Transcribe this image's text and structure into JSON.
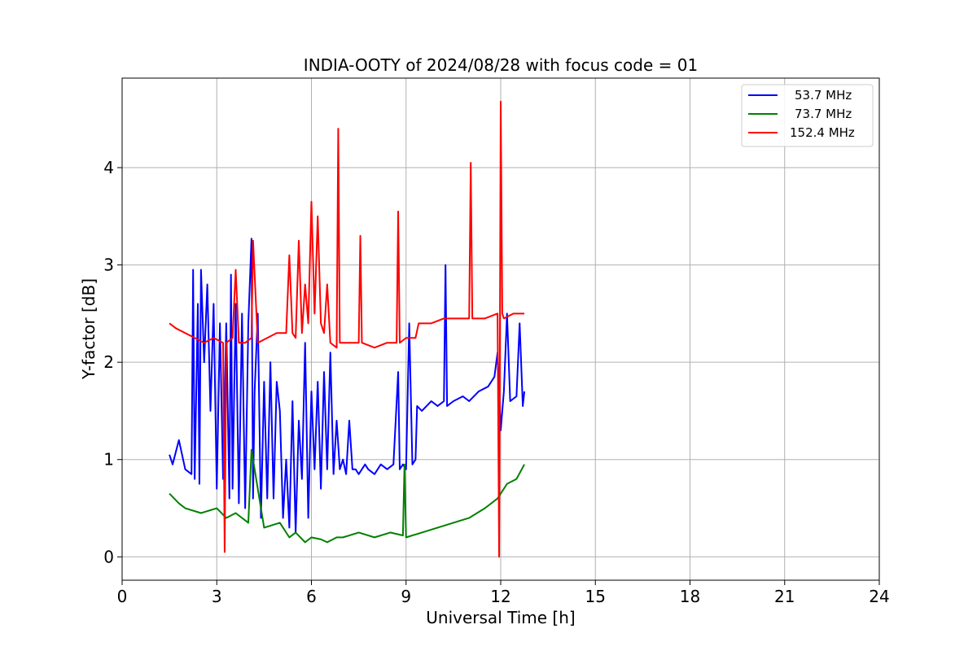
{
  "chart_data": {
    "type": "line",
    "title": "INDIA-OOTY of 2024/08/28 with focus code = 01",
    "xlabel": "Universal Time [h]",
    "ylabel": "Y-factor [dB]",
    "xlim": [
      0,
      24
    ],
    "ylim": [
      -0.24,
      4.92
    ],
    "xticks": [
      "0",
      "3",
      "6",
      "9",
      "12",
      "15",
      "18",
      "21",
      "24"
    ],
    "yticks": [
      "0",
      "1",
      "2",
      "3",
      "4"
    ],
    "grid": true,
    "legend_position": "top-right",
    "series": [
      {
        "name": "53.7 MHz",
        "color": "#0000ff",
        "x": [
          1.5,
          1.6,
          1.8,
          2.0,
          2.2,
          2.25,
          2.3,
          2.4,
          2.45,
          2.5,
          2.6,
          2.7,
          2.8,
          2.9,
          3.0,
          3.1,
          3.2,
          3.3,
          3.4,
          3.45,
          3.5,
          3.6,
          3.7,
          3.8,
          3.9,
          4.0,
          4.1,
          4.15,
          4.2,
          4.3,
          4.4,
          4.5,
          4.6,
          4.7,
          4.8,
          4.9,
          5.0,
          5.1,
          5.2,
          5.3,
          5.4,
          5.5,
          5.6,
          5.7,
          5.8,
          5.9,
          6.0,
          6.1,
          6.2,
          6.3,
          6.4,
          6.5,
          6.6,
          6.7,
          6.8,
          6.9,
          7.0,
          7.1,
          7.2,
          7.3,
          7.4,
          7.5,
          7.6,
          7.7,
          7.8,
          8.0,
          8.2,
          8.4,
          8.6,
          8.75,
          8.8,
          8.9,
          9.0,
          9.1,
          9.2,
          9.3,
          9.35,
          9.5,
          9.8,
          10.0,
          10.2,
          10.25,
          10.3,
          10.5,
          10.8,
          11.0,
          11.3,
          11.6,
          11.8,
          11.9,
          12.0,
          12.1,
          12.2,
          12.3,
          12.5,
          12.6,
          12.7,
          12.75
        ],
        "y": [
          1.05,
          0.95,
          1.2,
          0.9,
          0.85,
          2.95,
          0.8,
          2.6,
          0.75,
          2.95,
          2.0,
          2.8,
          1.5,
          2.6,
          0.7,
          2.4,
          0.8,
          2.4,
          0.6,
          2.9,
          0.7,
          2.6,
          0.55,
          2.5,
          0.5,
          2.4,
          3.27,
          0.6,
          1.7,
          2.5,
          0.4,
          1.8,
          0.6,
          2.0,
          0.6,
          1.8,
          1.5,
          0.4,
          1.0,
          0.3,
          1.6,
          0.25,
          1.4,
          0.8,
          2.2,
          0.4,
          1.7,
          0.9,
          1.8,
          0.7,
          1.9,
          0.9,
          2.1,
          0.85,
          1.4,
          0.9,
          1.0,
          0.85,
          1.4,
          0.9,
          0.9,
          0.85,
          0.9,
          0.95,
          0.9,
          0.85,
          0.95,
          0.9,
          0.95,
          1.9,
          0.9,
          0.95,
          0.9,
          2.4,
          0.95,
          1.0,
          1.55,
          1.5,
          1.6,
          1.55,
          1.6,
          3.0,
          1.55,
          1.6,
          1.65,
          1.6,
          1.7,
          1.75,
          1.85,
          2.1,
          1.3,
          1.7,
          2.5,
          1.6,
          1.65,
          2.4,
          1.55,
          1.7
        ]
      },
      {
        "name": "73.7 MHz",
        "color": "#008000",
        "x": [
          1.5,
          1.8,
          2.0,
          2.5,
          3.0,
          3.3,
          3.6,
          4.0,
          4.1,
          4.5,
          5.0,
          5.3,
          5.5,
          5.8,
          6.0,
          6.3,
          6.5,
          6.8,
          7.0,
          7.5,
          8.0,
          8.5,
          8.9,
          8.95,
          9.0,
          9.5,
          10.0,
          10.5,
          11.0,
          11.5,
          11.9,
          12.2,
          12.5,
          12.75
        ],
        "y": [
          0.65,
          0.55,
          0.5,
          0.45,
          0.5,
          0.4,
          0.45,
          0.35,
          1.1,
          0.3,
          0.35,
          0.2,
          0.25,
          0.15,
          0.2,
          0.18,
          0.15,
          0.2,
          0.2,
          0.25,
          0.2,
          0.25,
          0.22,
          0.95,
          0.2,
          0.25,
          0.3,
          0.35,
          0.4,
          0.5,
          0.6,
          0.75,
          0.8,
          0.95
        ]
      },
      {
        "name": "152.4 MHz",
        "color": "#ff0000",
        "x": [
          1.5,
          1.7,
          2.0,
          2.3,
          2.6,
          2.9,
          3.2,
          3.25,
          3.3,
          3.5,
          3.6,
          3.7,
          3.9,
          4.1,
          4.15,
          4.3,
          4.6,
          4.9,
          5.2,
          5.3,
          5.4,
          5.5,
          5.6,
          5.7,
          5.8,
          5.9,
          6.0,
          6.1,
          6.2,
          6.3,
          6.4,
          6.5,
          6.6,
          6.8,
          6.85,
          6.9,
          7.2,
          7.5,
          7.55,
          7.6,
          8.0,
          8.4,
          8.7,
          8.75,
          8.8,
          9.0,
          9.3,
          9.4,
          9.8,
          10.2,
          10.6,
          11.0,
          11.05,
          11.1,
          11.5,
          11.9,
          11.95,
          12.0,
          12.05,
          12.1,
          12.4,
          12.75
        ],
        "y": [
          2.4,
          2.35,
          2.3,
          2.25,
          2.2,
          2.25,
          2.2,
          0.05,
          2.2,
          2.25,
          2.95,
          2.2,
          2.2,
          2.25,
          3.25,
          2.2,
          2.25,
          2.3,
          2.3,
          3.1,
          2.3,
          2.25,
          3.25,
          2.3,
          2.8,
          2.4,
          3.65,
          2.5,
          3.5,
          2.4,
          2.3,
          2.8,
          2.2,
          2.15,
          4.4,
          2.2,
          2.2,
          2.2,
          3.3,
          2.2,
          2.15,
          2.2,
          2.2,
          3.55,
          2.2,
          2.25,
          2.25,
          2.4,
          2.4,
          2.45,
          2.45,
          2.45,
          4.05,
          2.45,
          2.45,
          2.5,
          0.0,
          4.68,
          2.5,
          2.45,
          2.5,
          2.5
        ]
      }
    ]
  }
}
